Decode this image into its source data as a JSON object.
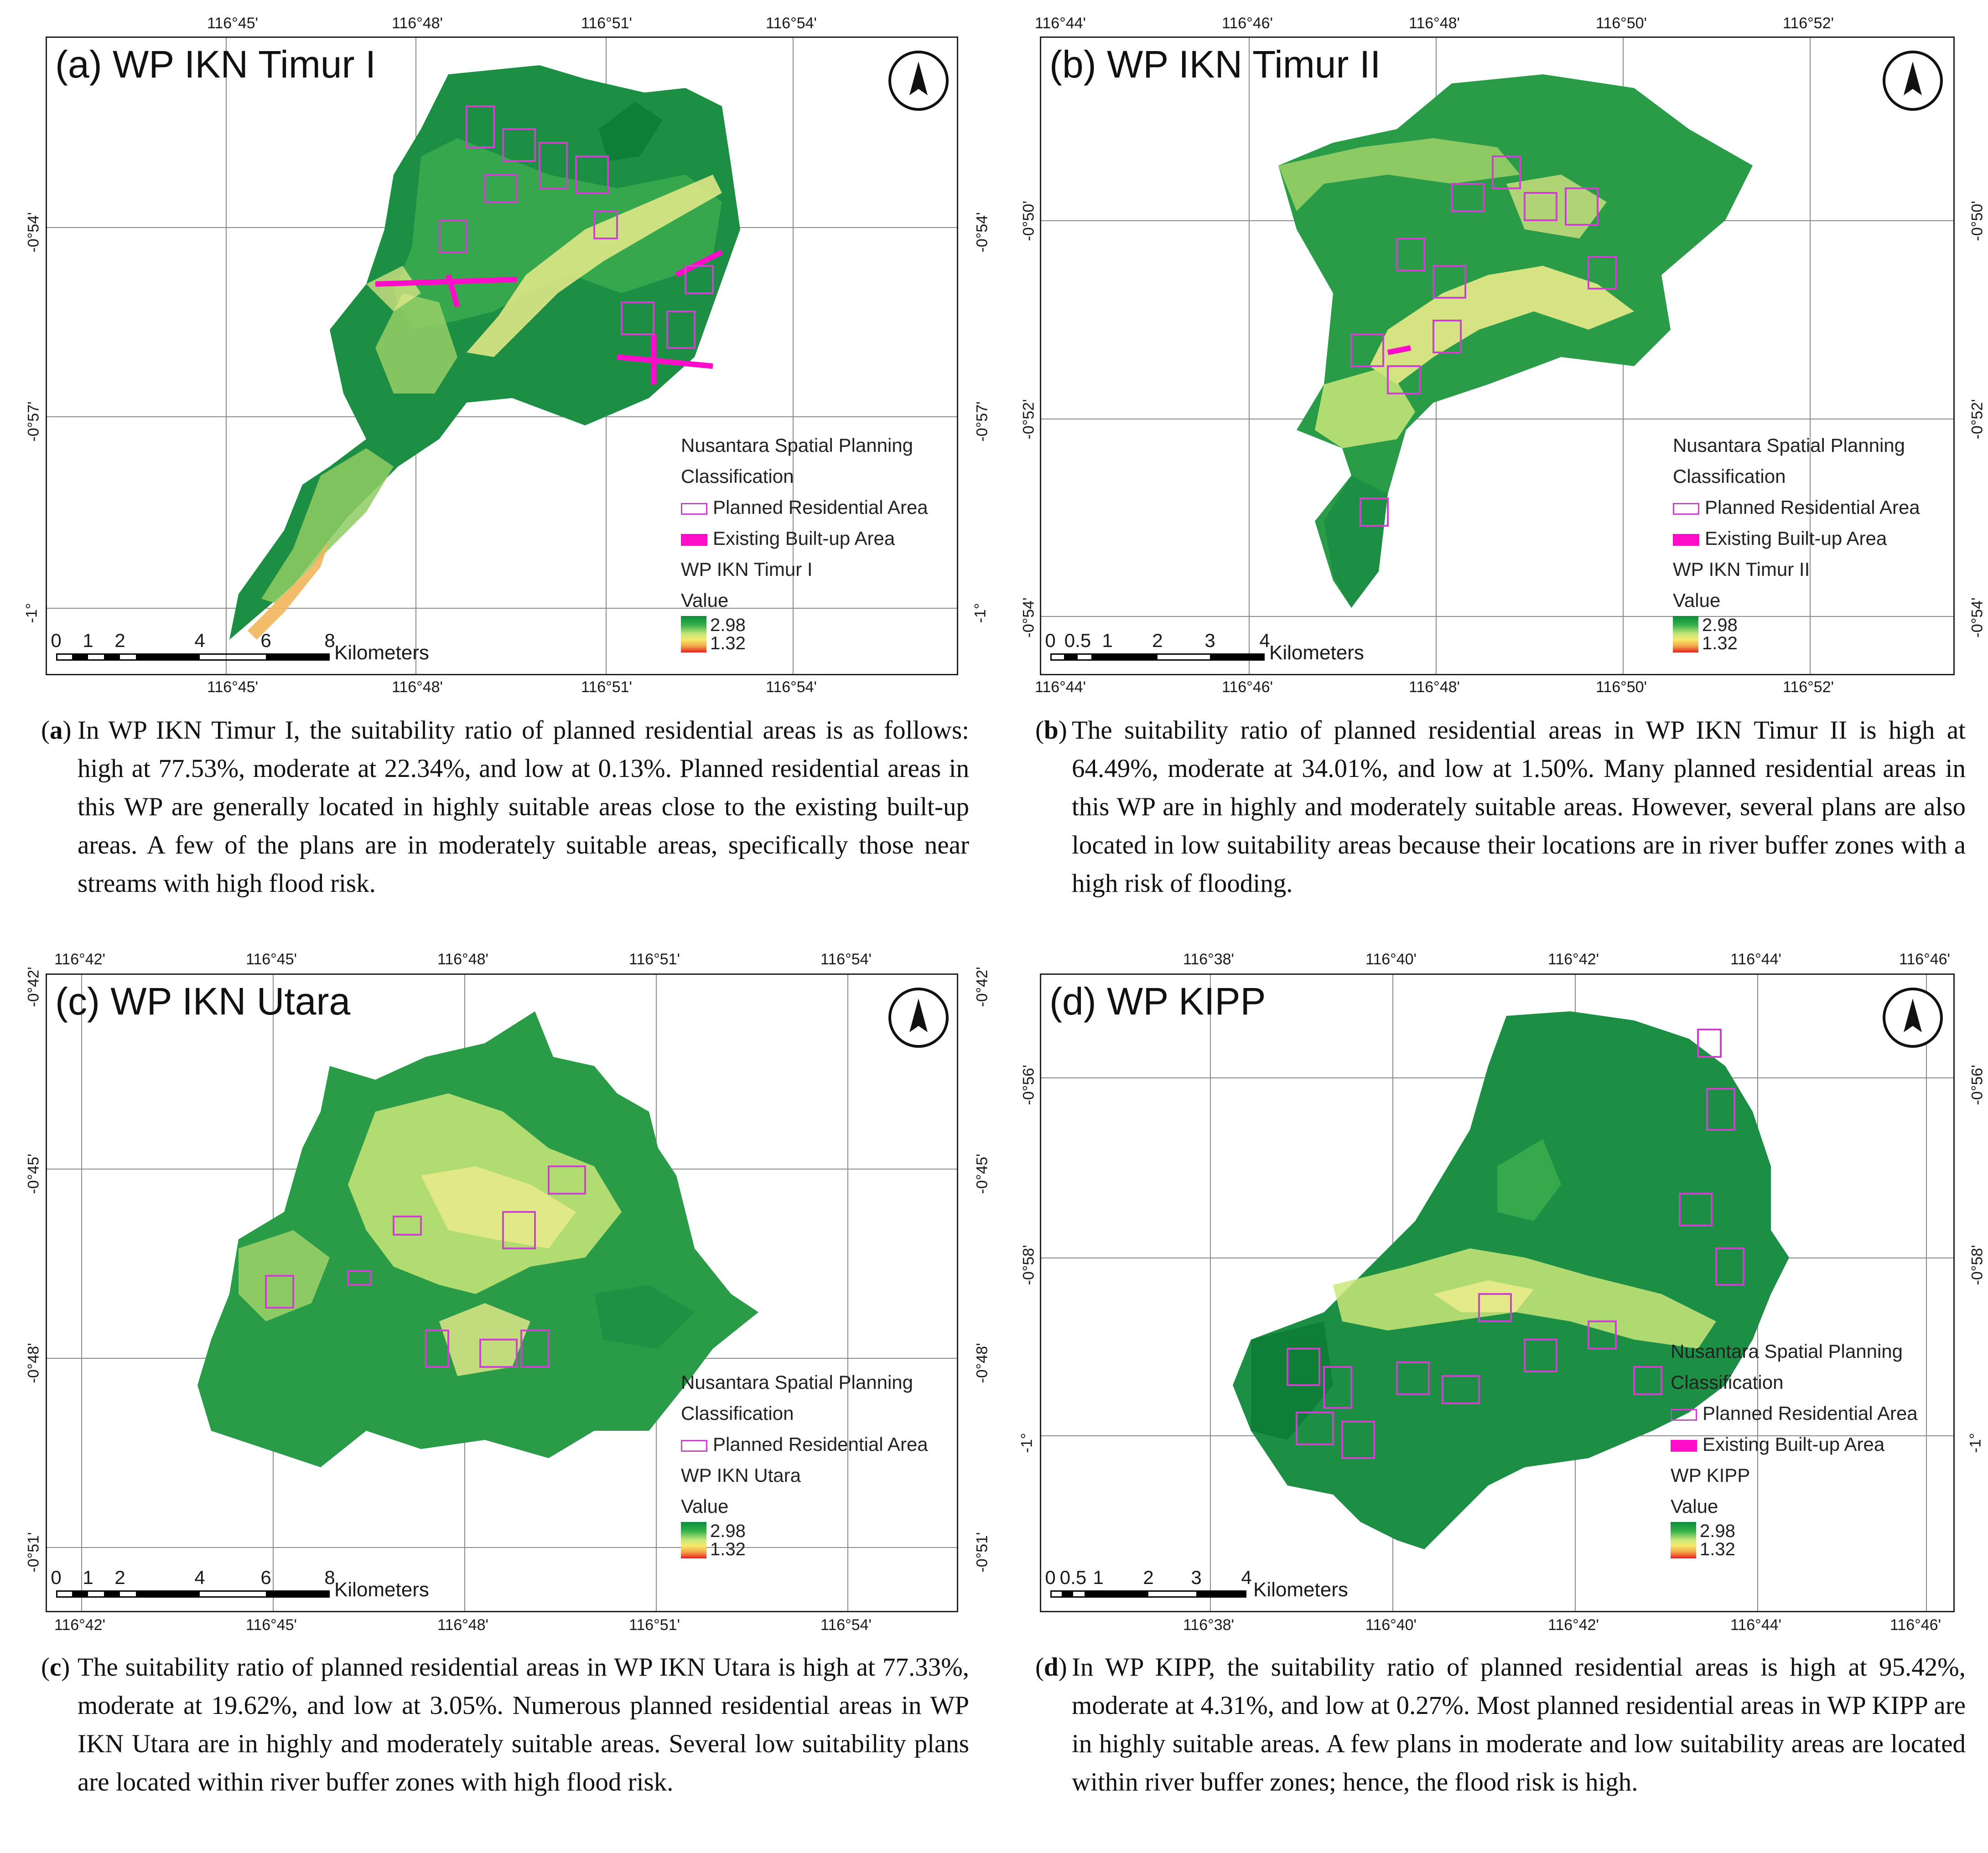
{
  "colors": {
    "ramp_high": "#0c8a3c",
    "ramp_low": "#e8201e",
    "planned_outline": "#cc44cc",
    "built_up": "#ff0dc8"
  },
  "panels": [
    {
      "id": "a",
      "title": "(a) WP IKN Timur I",
      "top_ticks": [
        "116°45'",
        "116°48'",
        "116°51'",
        "116°54'"
      ],
      "bottom_ticks": [
        "116°45'",
        "116°48'",
        "116°51'",
        "116°54'"
      ],
      "left_ticks": [
        "-0°54'",
        "-0°57'",
        "-1°"
      ],
      "right_ticks": [
        "-0°54'",
        "-0°57'",
        "-1°"
      ],
      "legend": {
        "heading1": "Nusantara Spatial Planning",
        "heading2": "Classification",
        "planned": "Planned Residential Area",
        "built": "Existing Built-up Area",
        "layer": "WP IKN Timur I",
        "value": "Value",
        "max": "2.98",
        "min": "1.32"
      },
      "scale": {
        "ticks": [
          "0",
          "1",
          "2",
          "4",
          "6",
          "8"
        ],
        "unit": "Kilometers"
      },
      "caption_label": "(a)",
      "caption": "In WP IKN Timur I, the suitability ratio of planned residential areas is as follows: high at 77.53%, moderate at 22.34%, and low at 0.13%. Planned residential areas in this WP are generally located in highly suitable areas close to the existing built-up areas. A few of the plans are in moderately suitable areas, specifically those near streams with high flood risk."
    },
    {
      "id": "b",
      "title": "(b) WP IKN Timur II",
      "top_ticks": [
        "116°44'",
        "116°46'",
        "116°48'",
        "116°50'",
        "116°52'"
      ],
      "bottom_ticks": [
        "116°44'",
        "116°46'",
        "116°48'",
        "116°50'",
        "116°52'"
      ],
      "left_ticks": [
        "-0°50'",
        "-0°52'",
        "-0°54'"
      ],
      "right_ticks": [
        "-0°50'",
        "-0°52'",
        "-0°54'"
      ],
      "legend": {
        "heading1": "Nusantara Spatial Planning",
        "heading2": "Classification",
        "planned": "Planned Residential Area",
        "built": "Existing Built-up Area",
        "layer": "WP IKN Timur II",
        "value": "Value",
        "max": "2.98",
        "min": "1.32"
      },
      "scale": {
        "ticks": [
          "0",
          "0.5",
          "1",
          "2",
          "3",
          "4"
        ],
        "unit": "Kilometers"
      },
      "caption_label": "(b)",
      "caption": "The suitability ratio of planned residential areas in WP IKN Timur II is high at 64.49%, moderate at 34.01%, and low at 1.50%. Many planned residential areas in this WP are in highly and moderately suitable areas. However, several plans are also located in low suitability areas because their locations are in river buffer zones with a high risk of flooding."
    },
    {
      "id": "c",
      "title": "(c) WP IKN Utara",
      "top_ticks": [
        "116°42'",
        "116°45'",
        "116°48'",
        "116°51'",
        "116°54'"
      ],
      "bottom_ticks": [
        "116°42'",
        "116°45'",
        "116°48'",
        "116°51'",
        "116°54'"
      ],
      "left_ticks": [
        "-0°42'",
        "-0°45'",
        "-0°48'",
        "-0°51'"
      ],
      "right_ticks": [
        "-0°42'",
        "-0°45'",
        "-0°48'",
        "-0°51'"
      ],
      "legend": {
        "heading1": "Nusantara Spatial Planning",
        "heading2": "Classification",
        "planned": "Planned Residential Area",
        "built": "",
        "layer": "WP IKN Utara",
        "value": "Value",
        "max": "2.98",
        "min": "1.32"
      },
      "scale": {
        "ticks": [
          "0",
          "1",
          "2",
          "4",
          "6",
          "8"
        ],
        "unit": "Kilometers"
      },
      "caption_label": "(c)",
      "caption": "The suitability ratio of planned residential areas in WP IKN Utara is high at 77.33%, moderate at 19.62%, and low at 3.05%. Numerous planned residential areas in WP IKN Utara are in highly and moderately suitable areas. Several low suitability plans are located within river buffer zones with high flood risk."
    },
    {
      "id": "d",
      "title": "(d) WP KIPP",
      "top_ticks": [
        "116°38'",
        "116°40'",
        "116°42'",
        "116°44'",
        "116°46'"
      ],
      "bottom_ticks": [
        "116°38'",
        "116°40'",
        "116°42'",
        "116°44'",
        "116°46'"
      ],
      "left_ticks": [
        "-0°56'",
        "-0°58'",
        "-1°"
      ],
      "right_ticks": [
        "-0°56'",
        "-0°58'",
        "-1°"
      ],
      "legend": {
        "heading1": "Nusantara Spatial Planning",
        "heading2": "Classification",
        "planned": "Planned Residential Area",
        "built": "Existing Built-up Area",
        "layer": "WP KIPP",
        "value": "Value",
        "max": "2.98",
        "min": "1.32"
      },
      "scale": {
        "ticks": [
          "0",
          "0.5",
          "1",
          "2",
          "3",
          "4"
        ],
        "unit": "Kilometers"
      },
      "caption_label": "(d)",
      "caption": "In WP KIPP, the suitability ratio of planned residential areas is high at 95.42%, moderate at 4.31%, and low at 0.27%. Most planned residential areas in WP KIPP are in highly suitable areas. A few plans in moderate and low suitability areas are located within river buffer zones; hence, the flood risk is high."
    }
  ]
}
